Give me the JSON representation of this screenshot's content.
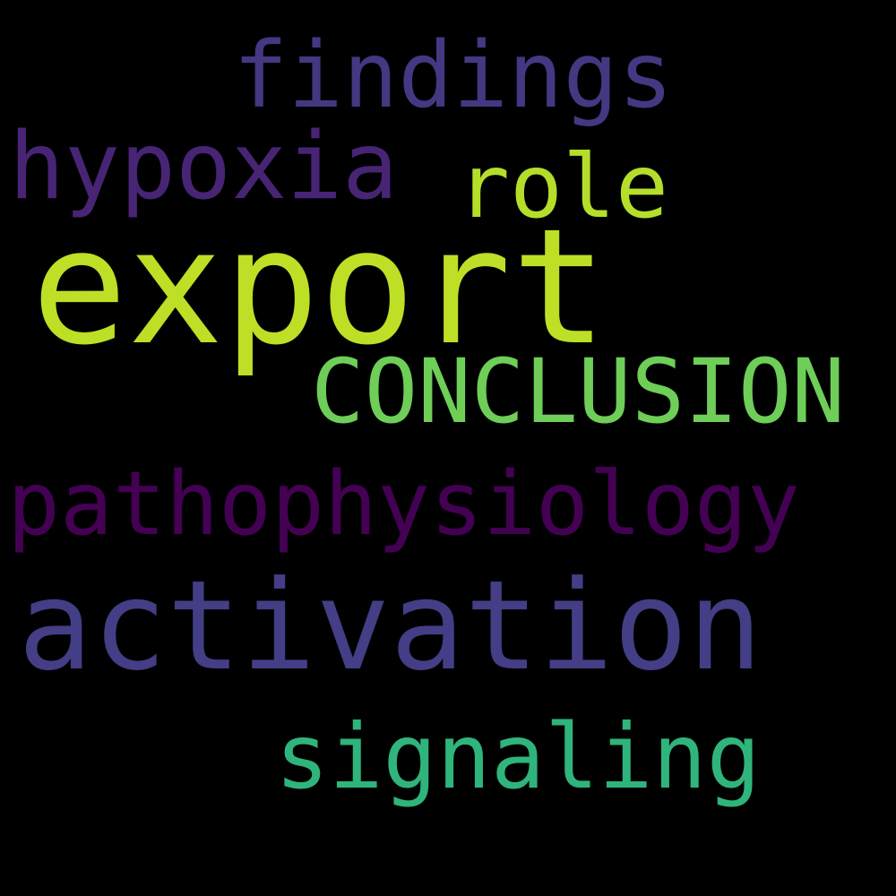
{
  "words": {
    "findings": {
      "text": "findings",
      "color": "#453781"
    },
    "hypoxia": {
      "text": "hypoxia",
      "color": "#482475"
    },
    "role": {
      "text": "role",
      "color": "#b5de2b"
    },
    "export": {
      "text": "export",
      "color": "#bddf26"
    },
    "conclusion": {
      "text": "CONCLUSION",
      "color": "#6ece58"
    },
    "pathophysiology": {
      "text": "pathophysiology",
      "color": "#440154"
    },
    "activation": {
      "text": "activation",
      "color": "#433e85"
    },
    "signaling": {
      "text": "signaling",
      "color": "#2fb47c"
    }
  },
  "background_color": "#000000"
}
